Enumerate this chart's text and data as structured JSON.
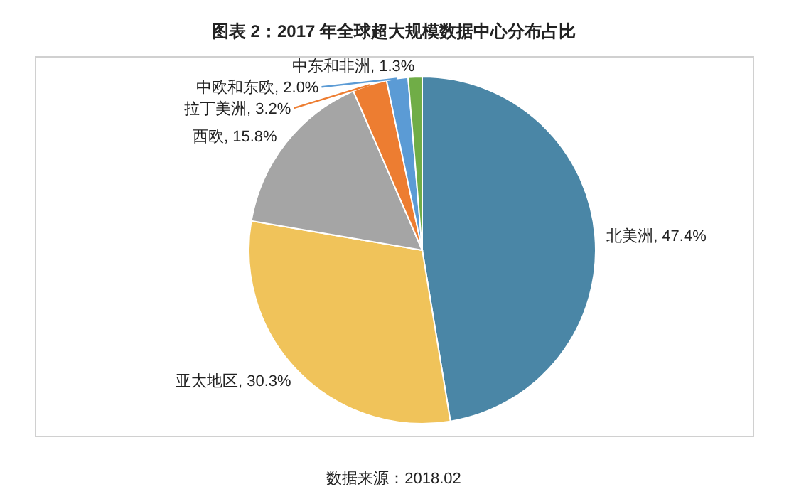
{
  "chart_data": {
    "type": "pie",
    "title": "图表 2：2017 年全球超大规模数据中心分布占比",
    "categories": [
      "北美洲",
      "亚太地区",
      "西欧",
      "拉丁美洲",
      "中欧和东欧",
      "中东和非洲"
    ],
    "values": [
      47.4,
      30.3,
      15.8,
      3.2,
      2.0,
      1.3
    ],
    "colors": [
      "#4a86a6",
      "#f0c35a",
      "#a5a5a5",
      "#ed7d31",
      "#5b9bd5",
      "#70ad47"
    ],
    "value_labels": [
      ", 47.4%",
      ", 30.3%",
      ", 15.8%",
      ", 3.2%",
      ", 2.0%",
      ", 1.3%"
    ],
    "annotations": [
      "数据来源：2018.02"
    ]
  }
}
